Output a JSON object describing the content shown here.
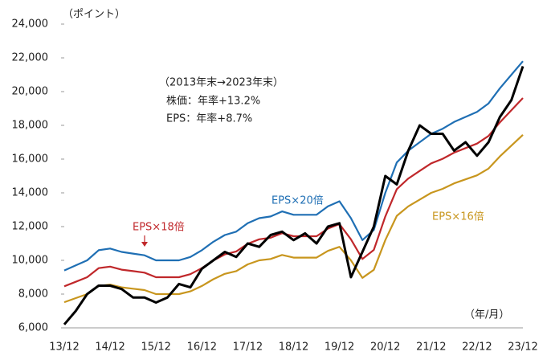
{
  "chart_data": {
    "type": "line",
    "y_unit_label": "（ポイント）",
    "x_unit_label": "（年/月）",
    "annotations": [
      "（2013年末→2023年末）",
      "株価：年率+13.2%",
      "EPS：年率+8.7%"
    ],
    "categories": [
      "13/12",
      null,
      null,
      null,
      "14/12",
      null,
      null,
      null,
      "15/12",
      null,
      null,
      null,
      "16/12",
      null,
      null,
      null,
      "17/12",
      null,
      null,
      null,
      "18/12",
      null,
      null,
      null,
      "19/12",
      null,
      null,
      null,
      "20/12",
      null,
      null,
      null,
      "21/12",
      null,
      null,
      null,
      "22/12",
      null,
      null,
      null,
      "23/12"
    ],
    "series": [
      {
        "name": "EPS×20倍",
        "color": "#1f6fb4",
        "width": 2.2,
        "values": [
          9400,
          9700,
          10000,
          10600,
          10700,
          10500,
          10400,
          10300,
          10000,
          10000,
          10000,
          10200,
          10600,
          11100,
          11500,
          11700,
          12200,
          12500,
          12600,
          12900,
          12700,
          12700,
          12700,
          13200,
          13500,
          12500,
          11200,
          11800,
          14000,
          15800,
          16500,
          17000,
          17500,
          17800,
          18200,
          18500,
          18800,
          19300,
          20200,
          21000,
          21800
        ]
      },
      {
        "name": "EPS×18倍",
        "color": "#c0282b",
        "width": 2.2,
        "values": [
          8460,
          8730,
          9000,
          9540,
          9630,
          9450,
          9360,
          9270,
          9000,
          9000,
          9000,
          9180,
          9540,
          9990,
          10350,
          10530,
          10980,
          11250,
          11340,
          11610,
          11430,
          11430,
          11430,
          11880,
          12150,
          11250,
          10080,
          10620,
          12600,
          14220,
          14850,
          15300,
          15750,
          16020,
          16380,
          16650,
          16920,
          17370,
          18180,
          18900,
          19620
        ]
      },
      {
        "name": "EPS×16倍",
        "color": "#c8961e",
        "width": 2.2,
        "values": [
          7520,
          7760,
          8000,
          8480,
          8560,
          8400,
          8320,
          8240,
          8000,
          8000,
          8000,
          8160,
          8480,
          8880,
          9200,
          9360,
          9760,
          10000,
          10080,
          10320,
          10160,
          10160,
          10160,
          10560,
          10800,
          10000,
          8960,
          9440,
          11200,
          12640,
          13200,
          13600,
          14000,
          14240,
          14560,
          14800,
          15040,
          15440,
          16160,
          16800,
          17440
        ]
      },
      {
        "color": "#000000",
        "width": 3,
        "values": [
          6200,
          7000,
          8000,
          8500,
          8500,
          8300,
          7800,
          7800,
          7500,
          7800,
          8600,
          8400,
          9500,
          10000,
          10500,
          10200,
          11000,
          10800,
          11500,
          11700,
          11200,
          11600,
          11000,
          12000,
          12200,
          9000,
          10500,
          12000,
          15000,
          14500,
          16500,
          18000,
          17500,
          17500,
          16500,
          17000,
          16200,
          17000,
          18500,
          19500,
          21500
        ]
      }
    ],
    "ylim": [
      6000,
      24000
    ],
    "yticks": [
      {
        "value": 6000,
        "label": "6,000"
      },
      {
        "value": 8000,
        "label": "8,000"
      },
      {
        "value": 10000,
        "label": "10,000"
      },
      {
        "value": 12000,
        "label": "12,000"
      },
      {
        "value": 14000,
        "label": "14,000"
      },
      {
        "value": 16000,
        "label": "16,000"
      },
      {
        "value": 18000,
        "label": "18,000"
      },
      {
        "value": 20000,
        "label": "20,000"
      },
      {
        "value": 22000,
        "label": "22,000"
      },
      {
        "value": 24000,
        "label": "24,000"
      }
    ]
  }
}
